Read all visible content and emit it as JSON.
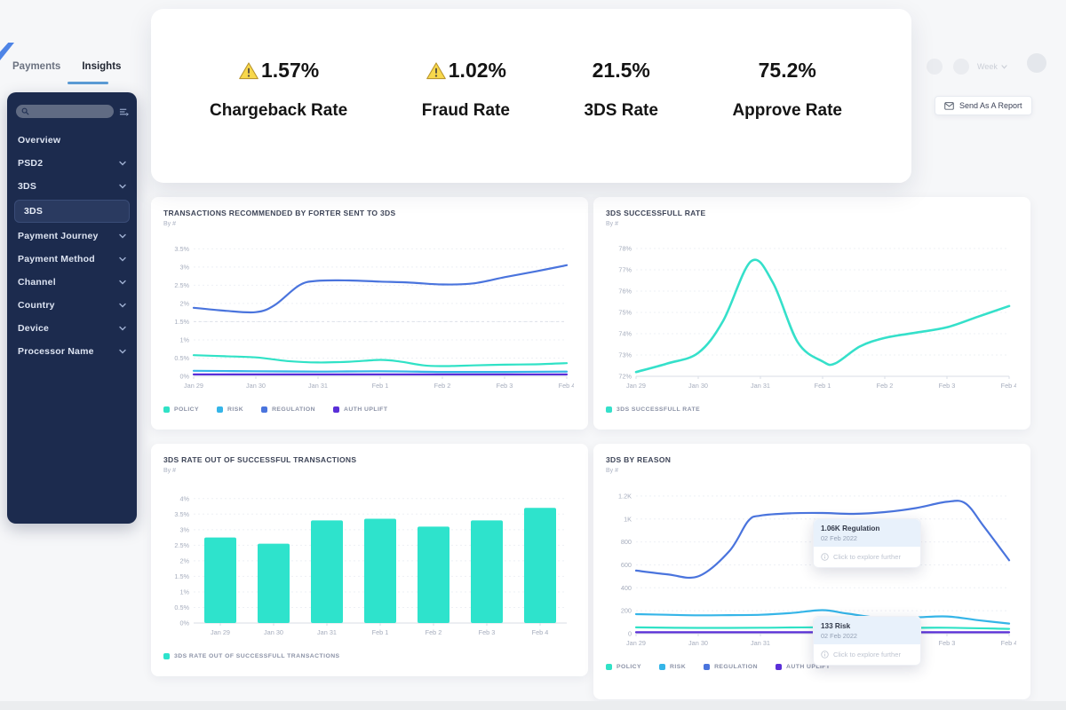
{
  "tabs": [
    {
      "label": "Payments",
      "active": false
    },
    {
      "label": "Insights",
      "active": true
    }
  ],
  "topbar": {
    "week_label": "Week",
    "send_report_label": "Send As A Report"
  },
  "sidebar": {
    "search_placeholder": "",
    "items": [
      {
        "label": "Overview",
        "chevron": false
      },
      {
        "label": "PSD2",
        "chevron": true
      },
      {
        "label": "3DS",
        "chevron": true
      },
      {
        "label": "3DS",
        "sub": true
      },
      {
        "label": "Payment Journey",
        "chevron": true
      },
      {
        "label": "Payment Method",
        "chevron": true
      },
      {
        "label": "Channel",
        "chevron": true
      },
      {
        "label": "Country",
        "chevron": true
      },
      {
        "label": "Device",
        "chevron": true
      },
      {
        "label": "Processor Name",
        "chevron": true
      }
    ]
  },
  "kpis": [
    {
      "value": "1.57%",
      "label": "Chargeback Rate",
      "warning": true
    },
    {
      "value": "1.02%",
      "label": "Fraud  Rate",
      "warning": true
    },
    {
      "value": "21.5%",
      "label": "3DS Rate",
      "warning": false
    },
    {
      "value": "75.2%",
      "label": "Approve Rate",
      "warning": false
    }
  ],
  "colors": {
    "sidebar_bg": "#1c2b4e",
    "tab_underline": "#5b9bd5",
    "warning_yellow": "#f8d84b",
    "policy_teal": "#30e2c6",
    "risk_cyan": "#35b5e8",
    "regulation_blue": "#4a74dd",
    "auth_uplift_purple": "#5a2fd8"
  },
  "chart_data": [
    {
      "type": "line",
      "title": "TRANSACTIONS RECOMMENDED BY FORTER SENT TO 3DS",
      "subtitle": "By #",
      "x_ticks": [
        "Jan 29",
        "Jan 30",
        "Jan 31",
        "Feb 1",
        "Feb 2",
        "Feb 3",
        "Feb 4"
      ],
      "ylim": [
        0,
        3.8
      ],
      "y_ticks": [
        {
          "v": 3.5,
          "l": "3.5%"
        },
        {
          "v": 3,
          "l": "3%"
        },
        {
          "v": 2.5,
          "l": "2.5%"
        },
        {
          "v": 2,
          "l": "2%"
        },
        {
          "v": 1.5,
          "l": "1.5%"
        },
        {
          "v": 1,
          "l": "1%"
        },
        {
          "v": 0.5,
          "l": "0.5%"
        },
        {
          "v": 0,
          "l": "0%"
        }
      ],
      "threshold": 1.5,
      "series": [
        {
          "name": "POLICY",
          "color": "#30e2c6",
          "points": [
            [
              0,
              0.58
            ],
            [
              0.5,
              0.55
            ],
            [
              1,
              0.52
            ],
            [
              1.5,
              0.42
            ],
            [
              2,
              0.38
            ],
            [
              2.5,
              0.4
            ],
            [
              3,
              0.45
            ],
            [
              3.3,
              0.41
            ],
            [
              3.7,
              0.3
            ],
            [
              4,
              0.28
            ],
            [
              4.5,
              0.3
            ],
            [
              5,
              0.32
            ],
            [
              5.5,
              0.33
            ],
            [
              6,
              0.36
            ]
          ]
        },
        {
          "name": "RISK",
          "color": "#35b5e8",
          "points": [
            [
              0,
              0.15
            ],
            [
              1,
              0.14
            ],
            [
              2,
              0.13
            ],
            [
              3,
              0.14
            ],
            [
              4,
              0.12
            ],
            [
              5,
              0.12
            ],
            [
              6,
              0.13
            ]
          ]
        },
        {
          "name": "REGULATION",
          "color": "#4a74dd",
          "points": [
            [
              0,
              1.88
            ],
            [
              0.5,
              1.8
            ],
            [
              1,
              1.76
            ],
            [
              1.3,
              1.95
            ],
            [
              1.7,
              2.5
            ],
            [
              2,
              2.62
            ],
            [
              2.5,
              2.63
            ],
            [
              3,
              2.6
            ],
            [
              3.5,
              2.57
            ],
            [
              4,
              2.52
            ],
            [
              4.5,
              2.55
            ],
            [
              5,
              2.72
            ],
            [
              5.5,
              2.88
            ],
            [
              6,
              3.05
            ]
          ]
        },
        {
          "name": "AUTH UPLIFT",
          "color": "#5a2fd8",
          "points": [
            [
              0,
              0.05
            ],
            [
              3,
              0.05
            ],
            [
              6,
              0.05
            ]
          ]
        }
      ],
      "legend_items": [
        {
          "label": "POLICY",
          "color": "#30e2c6"
        },
        {
          "label": "RISK",
          "color": "#35b5e8"
        },
        {
          "label": "REGULATION",
          "color": "#4a74dd"
        },
        {
          "label": "AUTH UPLIFT",
          "color": "#5a2fd8"
        }
      ]
    },
    {
      "type": "line",
      "title": "3DS SUCCESSFULL RATE",
      "subtitle": "By #",
      "x_ticks": [
        "Jan 29",
        "Jan 30",
        "Jan 31",
        "Feb 1",
        "Feb 2",
        "Feb 3",
        "Feb 4"
      ],
      "ylim": [
        72,
        78.5
      ],
      "y_ticks": [
        {
          "v": 78,
          "l": "78%"
        },
        {
          "v": 77,
          "l": "77%"
        },
        {
          "v": 76,
          "l": "76%"
        },
        {
          "v": 75,
          "l": "75%"
        },
        {
          "v": 74,
          "l": "74%"
        },
        {
          "v": 73,
          "l": "73%"
        },
        {
          "v": 72,
          "l": "72%"
        }
      ],
      "series": [
        {
          "name": "3DS SUCCESSFULL RATE",
          "color": "#35e0ca",
          "points": [
            [
              0,
              72.2
            ],
            [
              0.5,
              72.6
            ],
            [
              1,
              73.1
            ],
            [
              1.4,
              74.6
            ],
            [
              1.85,
              77.4
            ],
            [
              2.2,
              76.4
            ],
            [
              2.6,
              73.6
            ],
            [
              3,
              72.7
            ],
            [
              3.2,
              72.6
            ],
            [
              3.6,
              73.4
            ],
            [
              4,
              73.8
            ],
            [
              4.5,
              74.05
            ],
            [
              5,
              74.3
            ],
            [
              5.5,
              74.8
            ],
            [
              6,
              75.3
            ]
          ]
        }
      ],
      "legend_items": [
        {
          "label": "3DS SUCCESSFULL RATE",
          "color": "#35e0ca"
        }
      ]
    },
    {
      "type": "bar",
      "title": "3DS RATE OUT OF SUCCESSFUL TRANSACTIONS",
      "subtitle": "By #",
      "categories": [
        "Jan 29",
        "Jan 30",
        "Jan 31",
        "Feb 1",
        "Feb 2",
        "Feb 3",
        "Feb 4"
      ],
      "values": [
        2.75,
        2.55,
        3.3,
        3.35,
        3.1,
        3.3,
        3.7
      ],
      "color": "#2ee3cc",
      "ylim": [
        0,
        4.45
      ],
      "y_ticks": [
        {
          "v": 4,
          "l": "4%"
        },
        {
          "v": 3.5,
          "l": "3.5%"
        },
        {
          "v": 3,
          "l": "3%"
        },
        {
          "v": 2.5,
          "l": "2.5%"
        },
        {
          "v": 2,
          "l": "2%"
        },
        {
          "v": 1.5,
          "l": "1.5%"
        },
        {
          "v": 1,
          "l": "1%"
        },
        {
          "v": 0.5,
          "l": "0.5%"
        },
        {
          "v": 0,
          "l": "0%"
        }
      ],
      "legend_items": [
        {
          "label": "3DS RATE OUT OF SUCCESSFULL TRANSACTIONS",
          "color": "#2ee3cc"
        }
      ]
    },
    {
      "type": "line",
      "title": "3DS BY REASON",
      "subtitle": "By #",
      "x_ticks": [
        "Jan 29",
        "Jan 30",
        "Jan 31",
        "Feb 1",
        "Feb 2",
        "Feb 3",
        "Feb 4"
      ],
      "ylim": [
        0,
        1300
      ],
      "y_ticks": [
        {
          "v": 1200,
          "l": "1.2K"
        },
        {
          "v": 1000,
          "l": "1K"
        },
        {
          "v": 800,
          "l": "800"
        },
        {
          "v": 600,
          "l": "600"
        },
        {
          "v": 400,
          "l": "400"
        },
        {
          "v": 200,
          "l": "200"
        },
        {
          "v": 0,
          "l": "0"
        }
      ],
      "series": [
        {
          "name": "POLICY",
          "color": "#30e2c6",
          "points": [
            [
              0,
              55
            ],
            [
              1,
              50
            ],
            [
              2,
              52
            ],
            [
              3,
              56
            ],
            [
              4,
              50
            ],
            [
              5,
              52
            ],
            [
              6,
              42
            ]
          ]
        },
        {
          "name": "RISK",
          "color": "#35b5e8",
          "points": [
            [
              0,
              170
            ],
            [
              0.5,
              165
            ],
            [
              1,
              160
            ],
            [
              1.5,
              162
            ],
            [
              2,
              165
            ],
            [
              2.5,
              180
            ],
            [
              3,
              205
            ],
            [
              3.4,
              175
            ],
            [
              4,
              133
            ],
            [
              4.5,
              142
            ],
            [
              5,
              150
            ],
            [
              5.5,
              118
            ],
            [
              6,
              88
            ]
          ],
          "marker": [
            4,
            133
          ]
        },
        {
          "name": "REGULATION",
          "color": "#4a74dd",
          "points": [
            [
              0,
              550
            ],
            [
              0.5,
              518
            ],
            [
              1,
              500
            ],
            [
              1.5,
              720
            ],
            [
              1.8,
              980
            ],
            [
              2,
              1030
            ],
            [
              2.5,
              1050
            ],
            [
              3,
              1052
            ],
            [
              3.5,
              1045
            ],
            [
              4,
              1060
            ],
            [
              4.5,
              1095
            ],
            [
              5,
              1150
            ],
            [
              5.3,
              1135
            ],
            [
              5.6,
              930
            ],
            [
              6,
              640
            ]
          ]
        },
        {
          "name": "AUTH UPLIFT",
          "color": "#5a2fd8",
          "points": [
            [
              0,
              12
            ],
            [
              3,
              12
            ],
            [
              6,
              12
            ]
          ]
        }
      ],
      "legend_items": [
        {
          "label": "POLICY",
          "color": "#30e2c6"
        },
        {
          "label": "RISK",
          "color": "#35b5e8"
        },
        {
          "label": "REGULATION",
          "color": "#4a74dd"
        },
        {
          "label": "AUTH UPLIFT",
          "color": "#5a2fd8"
        }
      ],
      "tooltips": [
        {
          "title": "1.06K Regulation",
          "date": "02 Feb 2022",
          "cta": "Click to explore further"
        },
        {
          "title": "133 Risk",
          "date": "02 Feb 2022",
          "cta": "Click to explore further"
        }
      ]
    }
  ]
}
